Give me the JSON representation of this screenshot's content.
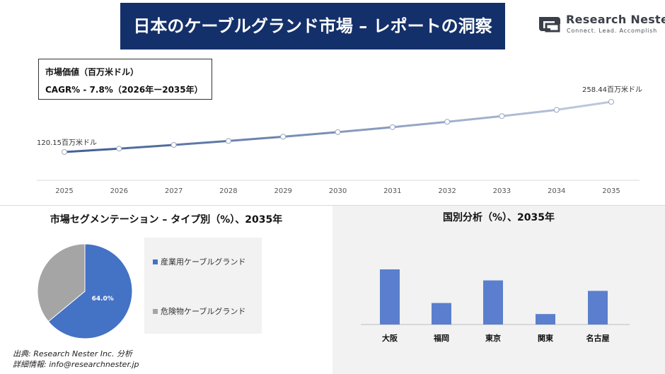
{
  "header": {
    "title": "日本のケーブルグランド市場 – レポートの洞察"
  },
  "logo": {
    "name": "Research Nester",
    "tagline": "Connect. Lead. Accomplish"
  },
  "info_box": {
    "line1": "市場価値（百万米ドル）",
    "line2": "CAGR% - 7.8%（2026年ー2035年）"
  },
  "pie_section": {
    "title": "市場セグメンテーション – タイプ別（%）、2035年"
  },
  "bar_section": {
    "title": "国別分析（%）、2035年"
  },
  "source": {
    "line1": "出典: Research Nester Inc. 分析",
    "line2": "詳細情報: info@researchnester.jp"
  },
  "colors": {
    "title_bg": "#14306a",
    "line_start": "#3d5c94",
    "line_end": "#c3cde0",
    "pie_primary": "#4472c4",
    "pie_secondary": "#a5a5a5",
    "bar": "#5b7fce"
  },
  "chart_data": [
    {
      "type": "line",
      "x": [
        "2025",
        "2026",
        "2027",
        "2028",
        "2029",
        "2030",
        "2031",
        "2032",
        "2033",
        "2034",
        "2035"
      ],
      "values": [
        120.15,
        129.5,
        139.6,
        150.5,
        162.3,
        174.9,
        188.6,
        203.3,
        219.1,
        236.2,
        258.44
      ],
      "start_label": "120.15百万米ドル",
      "end_label": "258.44百万米ドル",
      "grid": false
    },
    {
      "type": "pie",
      "categories": [
        "産業用ケーブルグランド",
        "危険物ケーブルグランド"
      ],
      "values": [
        64.0,
        36.0
      ],
      "slice_label": "64.0%",
      "legend": "right"
    },
    {
      "type": "bar",
      "categories": [
        "大阪",
        "福岡",
        "東京",
        "関東",
        "名古屋"
      ],
      "values": [
        100,
        39,
        80,
        19,
        61
      ],
      "grid": false
    }
  ]
}
